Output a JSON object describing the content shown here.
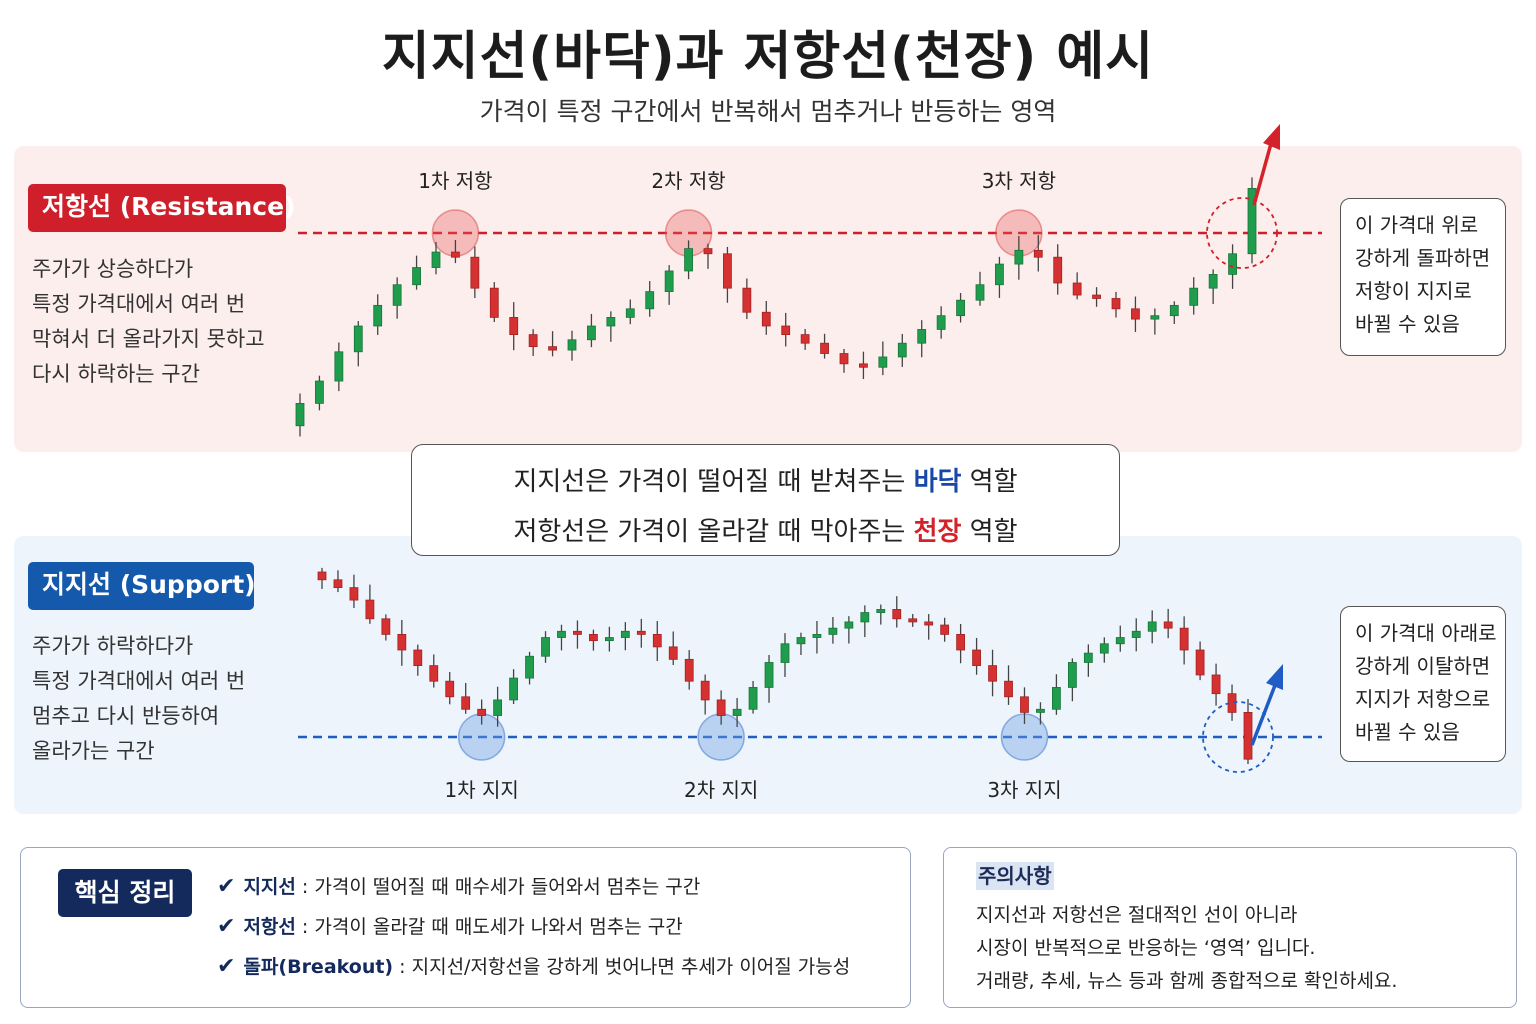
{
  "title": "지지선(바닥)과 저항선(천장) 예시",
  "subtitle": "가격이 특정 구간에서 반복해서 멈추거나 반등하는 영역",
  "resistance": {
    "badge": "저항선 (Resistance)",
    "desc": [
      "주가가 상승하다가",
      "특정 가격대에서 여러 번",
      "막혀서 더 올라가지 못하고",
      "다시 하락하는 구간"
    ],
    "labels": [
      "1차 저항",
      "2차 저항",
      "3차 저항"
    ],
    "side": [
      "이 가격대 위로",
      "강하게 돌파하면",
      "저항이 지지로",
      "바뀔 수 있음"
    ],
    "color": "#cf1f2a"
  },
  "support": {
    "badge": "지지선 (Support)",
    "desc": [
      "주가가 하락하다가",
      "특정 가격대에서 여러 번",
      "멈추고 다시 반등하여",
      "올라가는 구간"
    ],
    "labels": [
      "1차 지지",
      "2차 지지",
      "3차 지지"
    ],
    "side": [
      "이 가격대 아래로",
      "강하게 이탈하면",
      "지지가 저항으로",
      "바뀔 수 있음"
    ],
    "color": "#1559ad"
  },
  "middle": {
    "line1_pre": "지지선은 가격이 떨어질 때 받쳐주는 ",
    "line1_key": "바닥",
    "line1_post": " 역할",
    "line2_pre": "저항선은 가격이 올라갈 때 막아주는 ",
    "line2_key": "천장",
    "line2_post": " 역할"
  },
  "summary": {
    "badge": "핵심 정리",
    "items": [
      {
        "key": "지지선",
        "text": " : 가격이 떨어질 때 매수세가 들어와서 멈추는 구간"
      },
      {
        "key": "저항선",
        "text": " : 가격이 올라갈 때 매도세가 나와서 멈추는 구간"
      },
      {
        "key": "돌파(Breakout)",
        "text": " : 지지선/저항선을 강하게 벗어나면 추세가 이어질 가능성"
      }
    ]
  },
  "caution": {
    "title": "주의사항",
    "lines": [
      "지지선과 저항선은 절대적인 선이 아니라",
      "시장이 반복적으로 반응하는 ‘영역’ 입니다.",
      "거래량, 추세, 뉴스 등과 함께 종합적으로 확인하세요."
    ]
  },
  "chart_data": [
    {
      "type": "candlestick",
      "title": "저항선 (Resistance)",
      "close_path": [
        5,
        18,
        35,
        50,
        62,
        74,
        84,
        93,
        90,
        72,
        55,
        45,
        38,
        36,
        42,
        50,
        55,
        60,
        70,
        82,
        95,
        92,
        72,
        58,
        50,
        45,
        40,
        34,
        28,
        26,
        32,
        40,
        48,
        56,
        65,
        74,
        86,
        94,
        90,
        75,
        68,
        66,
        60,
        54,
        56,
        62,
        72,
        80,
        92,
        130
      ],
      "resistance_level": 92,
      "touch_indices": [
        8,
        20,
        37
      ],
      "breakout_index": 49,
      "colors": {
        "up": "#1f9d4c",
        "down": "#d63131"
      }
    },
    {
      "type": "candlestick",
      "title": "지지선 (Support)",
      "close_path": [
        95,
        90,
        82,
        70,
        60,
        50,
        40,
        30,
        20,
        12,
        8,
        18,
        32,
        46,
        58,
        62,
        60,
        56,
        58,
        62,
        60,
        52,
        44,
        30,
        18,
        8,
        12,
        26,
        42,
        54,
        58,
        60,
        64,
        68,
        74,
        76,
        70,
        68,
        66,
        60,
        50,
        40,
        30,
        20,
        10,
        12,
        26,
        42,
        48,
        54,
        58,
        62,
        68,
        64,
        50,
        34,
        22,
        10,
        -20
      ],
      "support_level": 8,
      "touch_indices": [
        10,
        25,
        44
      ],
      "breakdown_index": 58,
      "colors": {
        "up": "#1f9d4c",
        "down": "#d63131"
      }
    }
  ]
}
